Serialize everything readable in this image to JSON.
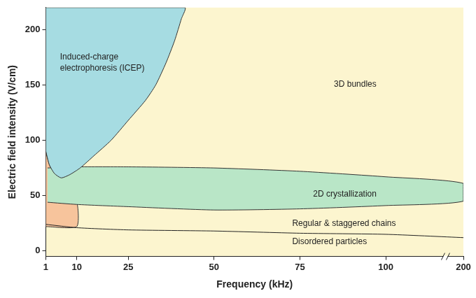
{
  "chart_data": {
    "type": "area",
    "x_label": "Frequency (kHz)",
    "y_label": "Electric field intensity (V/cm)",
    "xlim": [
      1,
      200
    ],
    "xticks": [
      1,
      10,
      25,
      50,
      75,
      100,
      200
    ],
    "ylim": [
      -5,
      220
    ],
    "yticks": [
      0,
      50,
      100,
      150,
      200
    ],
    "grid": false,
    "color": "#fcf5cf",
    "series": [
      {
        "type": "area",
        "color": "#f7c49c",
        "x": [
          1,
          2,
          3.5,
          5.5,
          7,
          7,
          10,
          10,
          1
        ],
        "values": [
          90,
          78,
          70,
          66,
          67,
          44,
          44,
          22,
          22
        ]
      },
      {
        "type": "area",
        "color": "#b9e6c7",
        "x": [
          1.5,
          10,
          25,
          50,
          75,
          100,
          200,
          200,
          100,
          75,
          50,
          25,
          10,
          1.5
        ],
        "values": [
          75,
          76,
          76,
          75,
          72,
          67,
          61,
          45,
          41,
          38,
          37,
          40,
          42,
          44
        ]
      },
      {
        "type": "area",
        "color": "#a6dce2",
        "x": [
          1,
          2,
          3.5,
          5.5,
          8,
          11,
          15,
          20,
          25,
          30,
          33,
          36,
          38.5,
          40.5,
          41.5,
          1
        ],
        "values": [
          90,
          78,
          70,
          66,
          69,
          75,
          86,
          100,
          118,
          136,
          150,
          170,
          190,
          210,
          220,
          220
        ]
      },
      {
        "type": "line",
        "color": "#222222",
        "x": [
          1,
          10,
          25,
          50,
          75,
          100,
          200
        ],
        "values": [
          24,
          21,
          19,
          18,
          16,
          15,
          12
        ]
      }
    ],
    "annotations": [
      {
        "text": "Induced-charge electrophoresis (ICEP)"
      },
      {
        "text": "3D bundles"
      },
      {
        "text": "2D crystallization"
      },
      {
        "text": "Regular & staggered chains"
      },
      {
        "text": "Disordered particles"
      }
    ]
  }
}
